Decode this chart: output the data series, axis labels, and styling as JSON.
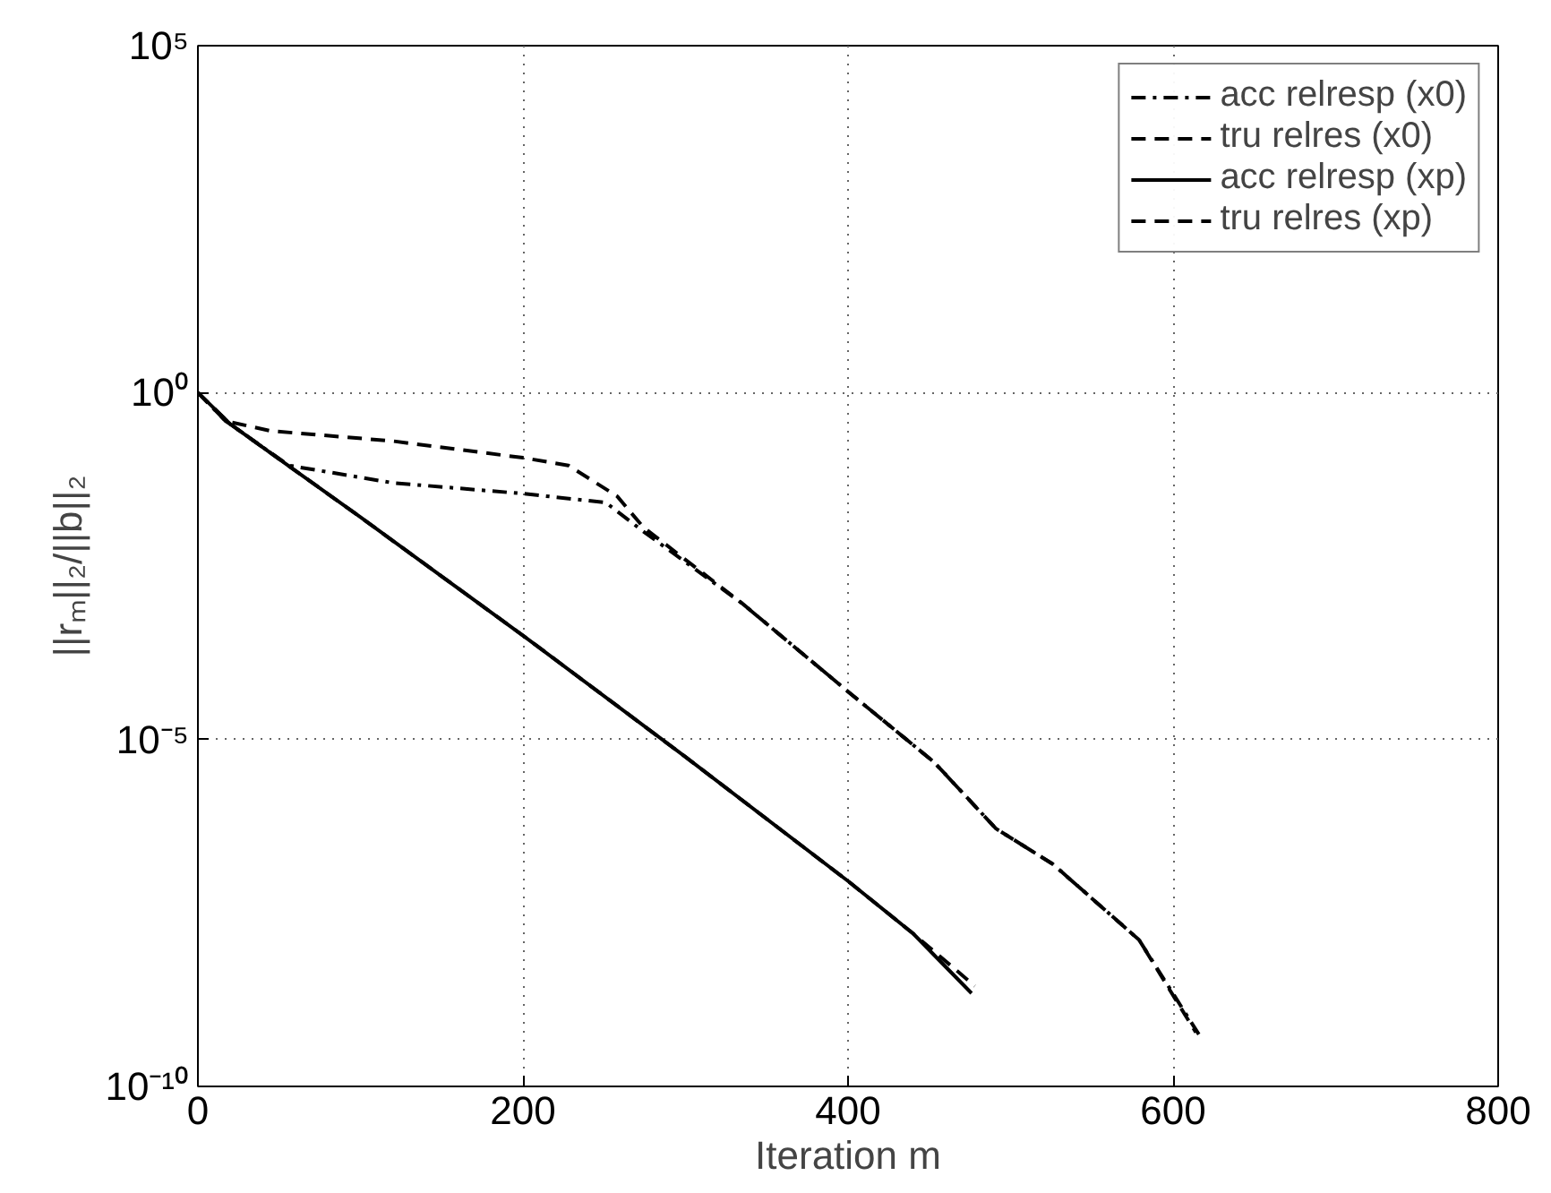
{
  "chart_data": {
    "type": "line",
    "xlabel": "Iteration m",
    "ylabel": "||rₘ||₂/||b||₂",
    "log": "y",
    "xlim": [
      0,
      800
    ],
    "xticks": [
      0,
      200,
      400,
      600,
      800
    ],
    "ylim": [
      1e-10,
      100000
    ],
    "yticks": [
      {
        "value": 1e-10,
        "label": "10⁻¹⁰"
      },
      {
        "value": 1e-05,
        "label": "10⁻⁵"
      },
      {
        "value": 1,
        "label": "10⁰"
      },
      {
        "value": 100000,
        "label": "10⁵"
      }
    ],
    "grid": true,
    "legend": "top right",
    "series": [
      {
        "name": "acc relresp (x0)",
        "color": "#000000",
        "line_style": "dashdot",
        "x": [
          0,
          17,
          56,
          120,
          200,
          251,
          274,
          335,
          400,
          453,
          491,
          526,
          579,
          617
        ],
        "values": [
          1,
          0.39,
          0.089,
          0.05,
          0.035,
          0.026,
          0.01,
          0.00091,
          4.9e-05,
          4.7e-06,
          5.2e-07,
          1.6e-07,
          1.3e-08,
          5.1e-10
        ]
      },
      {
        "name": "tru relres (x0)",
        "color": "#000000",
        "line_style": "dashed",
        "x": [
          0,
          17,
          45,
          120,
          200,
          228,
          258,
          274,
          335,
          400,
          453,
          491,
          526,
          579,
          614
        ],
        "values": [
          1,
          0.39,
          0.28,
          0.2,
          0.115,
          0.089,
          0.032,
          0.0115,
          0.00091,
          4.9e-05,
          4.7e-06,
          5.2e-07,
          1.6e-07,
          1.3e-08,
          6e-10
        ]
      },
      {
        "name": "acc relresp (xp)",
        "color": "#000000",
        "line_style": "solid",
        "x": [
          0,
          20,
          50,
          100,
          203,
          300,
          400,
          440,
          476
        ],
        "values": [
          1,
          0.35,
          0.11,
          0.016,
          0.00028,
          5.6e-06,
          9.1e-08,
          1.6e-08,
          2.2e-09
        ]
      },
      {
        "name": "tru relres (xp)",
        "color": "#000000",
        "line_style": "dashed",
        "x": [
          0,
          20,
          50,
          100,
          203,
          300,
          400,
          440,
          478
        ],
        "values": [
          1,
          0.35,
          0.11,
          0.016,
          0.00028,
          5.6e-06,
          9.1e-08,
          1.6e-08,
          2.8e-09
        ]
      }
    ]
  }
}
